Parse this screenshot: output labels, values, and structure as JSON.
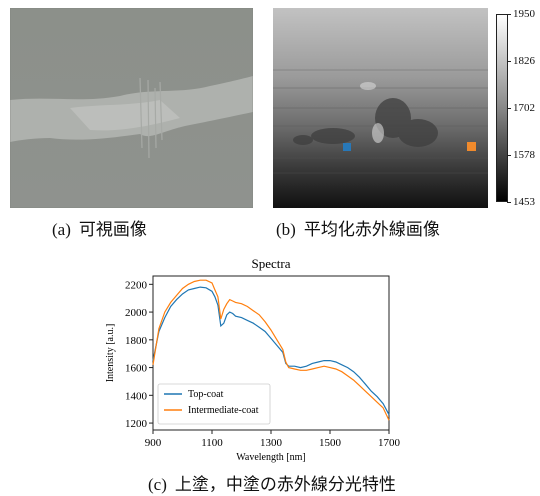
{
  "captions": {
    "a_label": "(a)",
    "a_text": "可視画像",
    "b_label": "(b)",
    "b_text": "平均化赤外線画像",
    "c_label": "(c)",
    "c_text": "上塗，中塗の赤外線分光特性"
  },
  "colorbar": {
    "ticks": [
      "1950",
      "1826",
      "1702",
      "1578",
      "1453"
    ],
    "min": 1453,
    "max": 1950
  },
  "markers": [
    {
      "name": "top-coat-marker",
      "color": "#2878b8"
    },
    {
      "name": "intermediate-coat-marker",
      "color": "#f08a2c"
    }
  ],
  "chart_data": {
    "type": "line",
    "title": "Spectra",
    "xlabel": "Wavelength [nm]",
    "ylabel": "Intensity [a.u.]",
    "xlim": [
      900,
      1700
    ],
    "ylim": [
      1150,
      2260
    ],
    "xticks": [
      900,
      1100,
      1300,
      1500,
      1700
    ],
    "yticks": [
      1200,
      1400,
      1600,
      1800,
      2000,
      2200
    ],
    "legend_position": "lower-left",
    "series": [
      {
        "name": "Top-coat",
        "color": "#1f77b4",
        "x": [
          900,
          920,
          940,
          960,
          980,
          1000,
          1020,
          1040,
          1060,
          1080,
          1100,
          1110,
          1120,
          1130,
          1140,
          1150,
          1160,
          1170,
          1180,
          1200,
          1220,
          1240,
          1260,
          1280,
          1300,
          1320,
          1340,
          1350,
          1360,
          1380,
          1400,
          1420,
          1440,
          1460,
          1480,
          1500,
          1520,
          1540,
          1560,
          1580,
          1600,
          1620,
          1640,
          1660,
          1680,
          1700
        ],
        "y": [
          1650,
          1860,
          1960,
          2040,
          2090,
          2130,
          2160,
          2170,
          2180,
          2175,
          2150,
          2110,
          2050,
          1900,
          1920,
          1980,
          2000,
          1990,
          1970,
          1960,
          1940,
          1920,
          1890,
          1860,
          1810,
          1760,
          1710,
          1630,
          1610,
          1610,
          1600,
          1610,
          1630,
          1640,
          1650,
          1650,
          1640,
          1620,
          1600,
          1570,
          1530,
          1480,
          1430,
          1390,
          1340,
          1260
        ]
      },
      {
        "name": "Intermediate-coat",
        "color": "#ff7f0e",
        "x": [
          900,
          920,
          940,
          960,
          980,
          1000,
          1020,
          1040,
          1060,
          1080,
          1100,
          1110,
          1120,
          1130,
          1140,
          1150,
          1160,
          1170,
          1180,
          1200,
          1220,
          1240,
          1260,
          1280,
          1300,
          1320,
          1340,
          1350,
          1360,
          1380,
          1400,
          1420,
          1440,
          1460,
          1480,
          1500,
          1520,
          1540,
          1560,
          1580,
          1600,
          1620,
          1640,
          1660,
          1680,
          1700
        ],
        "y": [
          1620,
          1880,
          2000,
          2070,
          2120,
          2170,
          2200,
          2220,
          2230,
          2230,
          2210,
          2160,
          2110,
          1950,
          2020,
          2060,
          2090,
          2080,
          2070,
          2060,
          2040,
          2010,
          1980,
          1930,
          1870,
          1800,
          1730,
          1640,
          1600,
          1590,
          1580,
          1580,
          1590,
          1600,
          1610,
          1600,
          1590,
          1570,
          1540,
          1510,
          1470,
          1430,
          1390,
          1350,
          1310,
          1220
        ]
      }
    ]
  }
}
